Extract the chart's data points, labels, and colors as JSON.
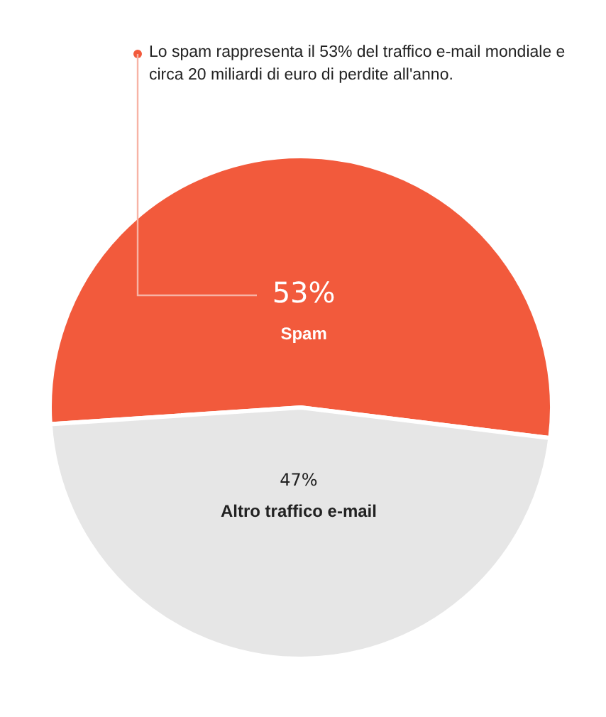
{
  "chart_data": {
    "type": "pie",
    "categories": [
      "Spam",
      "Altro traffico e-mail"
    ],
    "values": [
      53,
      47
    ],
    "colors": [
      "#f25a3c",
      "#e6e6e6"
    ],
    "value_labels": [
      "53%",
      "47%"
    ],
    "annotations": [
      "Lo spam rappresenta il 53% del traffico e-mail mondiale e circa 20 miliardi di euro di perdite all'anno."
    ]
  }
}
